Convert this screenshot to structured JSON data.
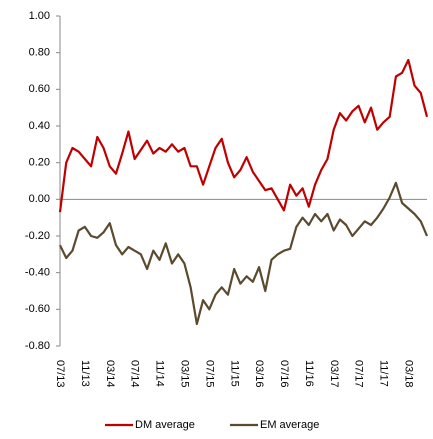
{
  "chart_data": {
    "type": "line",
    "categories": [
      "07/13",
      null,
      null,
      null,
      "11/13",
      null,
      null,
      null,
      "03/14",
      null,
      null,
      null,
      "07/14",
      null,
      null,
      null,
      "11/14",
      null,
      null,
      null,
      "03/15",
      null,
      null,
      null,
      "07/15",
      null,
      null,
      null,
      "11/15",
      null,
      null,
      null,
      "03/16",
      null,
      null,
      null,
      "07/16",
      null,
      null,
      null,
      "11/16",
      null,
      null,
      null,
      "03/17",
      null,
      null,
      null,
      "07/17",
      null,
      null,
      null,
      "11/17",
      null,
      null,
      null,
      "03/18",
      null,
      null,
      null
    ],
    "series": [
      {
        "name": "DM average",
        "color": "#c00000",
        "values": [
          -0.07,
          0.2,
          0.28,
          0.26,
          0.22,
          0.18,
          0.34,
          0.28,
          0.18,
          0.14,
          0.25,
          0.37,
          0.22,
          0.27,
          0.32,
          0.25,
          0.28,
          0.26,
          0.3,
          0.26,
          0.28,
          0.18,
          0.18,
          0.08,
          0.18,
          0.28,
          0.33,
          0.2,
          0.12,
          0.16,
          0.23,
          0.15,
          0.1,
          0.05,
          0.06,
          0.0,
          -0.06,
          0.08,
          0.02,
          0.06,
          -0.04,
          0.08,
          0.16,
          0.22,
          0.38,
          0.47,
          0.43,
          0.48,
          0.51,
          0.42,
          0.5,
          0.38,
          0.42,
          0.45,
          0.67,
          0.69,
          0.76,
          0.62,
          0.58,
          0.45
        ]
      },
      {
        "name": "EM average",
        "color": "#5b4a2f",
        "values": [
          -0.25,
          -0.32,
          -0.28,
          -0.17,
          -0.15,
          -0.2,
          -0.21,
          -0.18,
          -0.13,
          -0.25,
          -0.3,
          -0.26,
          -0.28,
          -0.3,
          -0.38,
          -0.28,
          -0.33,
          -0.24,
          -0.35,
          -0.3,
          -0.35,
          -0.48,
          -0.68,
          -0.55,
          -0.6,
          -0.52,
          -0.48,
          -0.52,
          -0.38,
          -0.46,
          -0.42,
          -0.45,
          -0.37,
          -0.5,
          -0.33,
          -0.3,
          -0.28,
          -0.27,
          -0.15,
          -0.1,
          -0.14,
          -0.08,
          -0.12,
          -0.08,
          -0.17,
          -0.11,
          -0.14,
          -0.2,
          -0.16,
          -0.12,
          -0.14,
          -0.1,
          -0.05,
          0.01,
          0.09,
          -0.02,
          -0.05,
          -0.08,
          -0.12,
          -0.2
        ]
      }
    ],
    "ylim": [
      -0.8,
      1.0
    ],
    "yticks": [
      {
        "value": -0.8,
        "label": "-0.80"
      },
      {
        "value": -0.6,
        "label": "-0.60"
      },
      {
        "value": -0.4,
        "label": "-0.40"
      },
      {
        "value": -0.2,
        "label": "-0.20"
      },
      {
        "value": 0,
        "label": "0.00"
      },
      {
        "value": 0.2,
        "label": "0.20"
      },
      {
        "value": 0.4,
        "label": "0.40"
      },
      {
        "value": 0.6,
        "label": "0.60"
      },
      {
        "value": 0.8,
        "label": "0.80"
      },
      {
        "value": 1.0,
        "label": "1.00"
      }
    ],
    "legend": "bottom"
  }
}
